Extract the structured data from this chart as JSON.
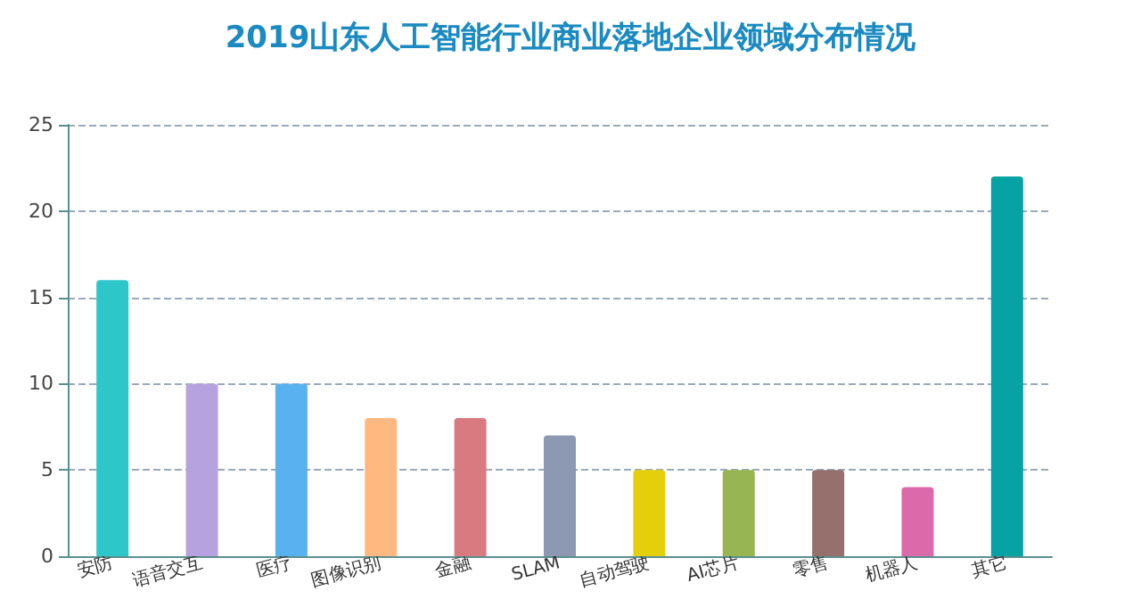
{
  "chart_data": {
    "type": "bar",
    "title": "2019山东人工智能行业商业落地企业领域分布情况",
    "categories": [
      "安防",
      "语音交互",
      "医疗",
      "图像识别",
      "金融",
      "SLAM",
      "自动驾驶",
      "AI芯片",
      "零售",
      "机器人",
      "其它"
    ],
    "values": [
      16,
      10,
      10,
      8,
      8,
      7,
      5,
      5,
      5,
      4,
      22
    ],
    "colors": [
      "#2ec7c9",
      "#b6a2de",
      "#5ab1ef",
      "#ffb980",
      "#d87a80",
      "#8d98b3",
      "#e5cf0d",
      "#97b552",
      "#95706d",
      "#dc69aa",
      "#07a2a4"
    ],
    "ylim": [
      0,
      25
    ],
    "yticks": [
      0,
      5,
      10,
      15,
      20,
      25
    ],
    "grid": "y"
  }
}
